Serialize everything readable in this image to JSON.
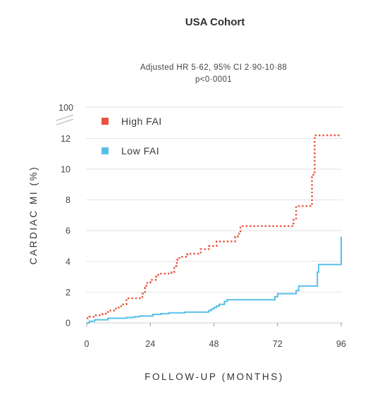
{
  "chart_data": {
    "type": "line",
    "subtype": "kaplan-meier-step",
    "title": "USA Cohort",
    "subtitle_lines": [
      "Adjusted HR 5·62, 95% CI 2·90-10·88",
      "p<0·0001"
    ],
    "xlabel": "FOLLOW-UP (MONTHS)",
    "ylabel": "CARDIAC MI (%)",
    "xlim": [
      0,
      96
    ],
    "ylim": [
      0,
      13
    ],
    "x_ticks": [
      0,
      24,
      48,
      72,
      96
    ],
    "x_tick_labels": [
      "0",
      "24",
      "48",
      "72",
      "96"
    ],
    "y_ticks": [
      0,
      2,
      4,
      6,
      8,
      10,
      12
    ],
    "y_tick_labels": [
      "0",
      "2",
      "4",
      "6",
      "8",
      "10",
      "12"
    ],
    "y_break_label": "100",
    "grid": "horizontal",
    "legend_position": "top-left",
    "series": [
      {
        "name": "High FAI",
        "color": "#e8533f",
        "line_style": "dotted",
        "points": [
          [
            0,
            0.3
          ],
          [
            1,
            0.4
          ],
          [
            3,
            0.5
          ],
          [
            6,
            0.6
          ],
          [
            8,
            0.8
          ],
          [
            11,
            1.0
          ],
          [
            13,
            1.2
          ],
          [
            15,
            1.6
          ],
          [
            21,
            1.9
          ],
          [
            22,
            2.3
          ],
          [
            22.5,
            2.6
          ],
          [
            24,
            2.8
          ],
          [
            26,
            3.0
          ],
          [
            27,
            3.2
          ],
          [
            32,
            3.3
          ],
          [
            33,
            3.7
          ],
          [
            34,
            4.1
          ],
          [
            35,
            4.3
          ],
          [
            38,
            4.5
          ],
          [
            43,
            4.8
          ],
          [
            46,
            5.0
          ],
          [
            49,
            5.3
          ],
          [
            56,
            5.6
          ],
          [
            57,
            5.8
          ],
          [
            58,
            6.3
          ],
          [
            78,
            6.7
          ],
          [
            79,
            7.6
          ],
          [
            85,
            9.5
          ],
          [
            85.5,
            9.8
          ],
          [
            86,
            12.2
          ],
          [
            96,
            12.2
          ]
        ]
      },
      {
        "name": "Low FAI",
        "color": "#59bfe8",
        "line_style": "solid",
        "points": [
          [
            0,
            0
          ],
          [
            1,
            0.1
          ],
          [
            3,
            0.2
          ],
          [
            8,
            0.3
          ],
          [
            15,
            0.35
          ],
          [
            18,
            0.4
          ],
          [
            20,
            0.45
          ],
          [
            25,
            0.55
          ],
          [
            28,
            0.6
          ],
          [
            31,
            0.65
          ],
          [
            37,
            0.7
          ],
          [
            46,
            0.8
          ],
          [
            47,
            0.9
          ],
          [
            48,
            1.0
          ],
          [
            49,
            1.1
          ],
          [
            50,
            1.2
          ],
          [
            52,
            1.4
          ],
          [
            53,
            1.5
          ],
          [
            71,
            1.7
          ],
          [
            72,
            1.9
          ],
          [
            79,
            2.1
          ],
          [
            80,
            2.4
          ],
          [
            87,
            3.3
          ],
          [
            87.5,
            3.8
          ],
          [
            96,
            5.6
          ]
        ]
      }
    ]
  }
}
